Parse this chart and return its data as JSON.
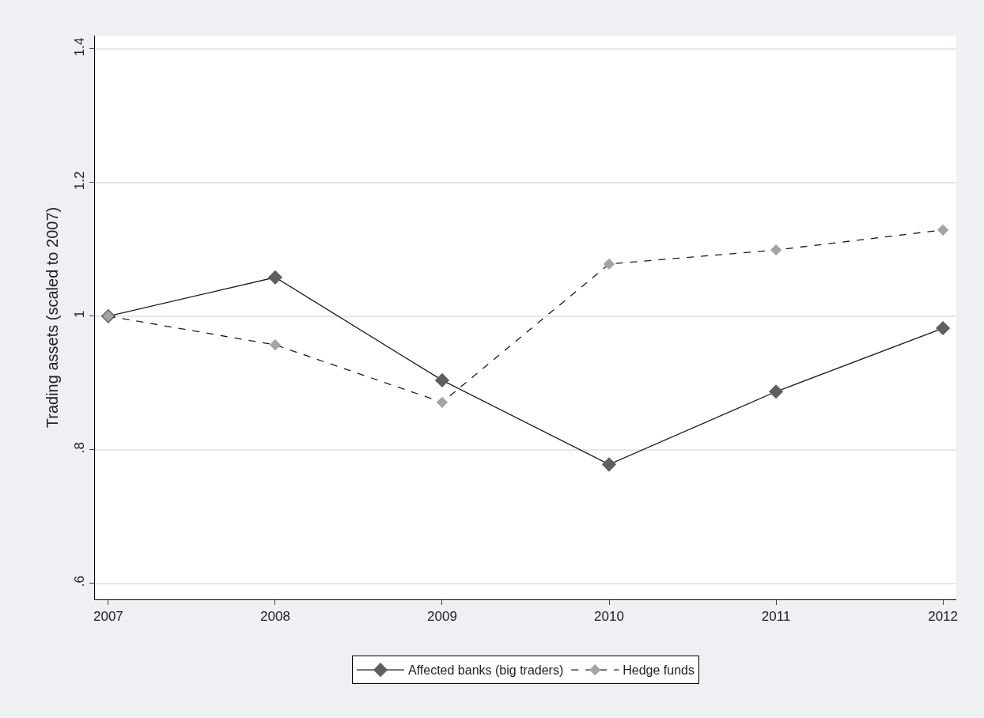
{
  "chart_data": {
    "type": "line",
    "ylabel": "Trading assets (scaled to 2007)",
    "x": [
      2007,
      2008,
      2009,
      2010,
      2011,
      2012
    ],
    "series": [
      {
        "name": "Affected banks (big traders)",
        "color": "#5f5f5f",
        "values": [
          1.0,
          1.058,
          0.904,
          0.778,
          0.887,
          0.982
        ],
        "line_style": "solid"
      },
      {
        "name": "Hedge funds",
        "color": "#a3a3a3",
        "values": [
          1.0,
          0.957,
          0.871,
          1.078,
          1.099,
          1.129
        ],
        "line_style": "dashed"
      }
    ],
    "xlim": [
      2006.92,
      2012.08
    ],
    "xticks": [
      2007,
      2008,
      2009,
      2010,
      2011,
      2012
    ],
    "ylim": [
      0.576,
      1.42
    ],
    "yticks": [
      {
        "value": 0.6,
        "label": ".6"
      },
      {
        "value": 0.8,
        "label": ".8"
      },
      1,
      1.2,
      1.4
    ],
    "grid": "y",
    "legend": "bottom",
    "marker": "diamond"
  }
}
